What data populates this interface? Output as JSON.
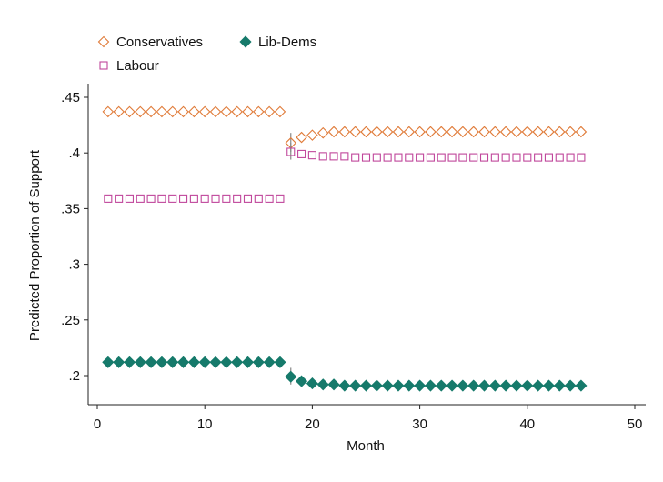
{
  "chart_data": {
    "type": "scatter",
    "title": "",
    "xlabel": "Month",
    "ylabel": "Predicted Proportion of Support",
    "xlim": [
      0,
      50
    ],
    "ylim": [
      0.18,
      0.455
    ],
    "xticks": [
      0,
      10,
      20,
      30,
      40,
      50
    ],
    "xtick_labels": [
      "0",
      "10",
      "20",
      "30",
      "40",
      "50"
    ],
    "yticks": [
      0.2,
      0.25,
      0.3,
      0.35,
      0.4,
      0.45
    ],
    "ytick_labels": [
      ".2",
      ".25",
      ".3",
      ".35",
      ".4",
      ".45"
    ],
    "grid": false,
    "legend_position": "top-left",
    "x": [
      1,
      2,
      3,
      4,
      5,
      6,
      7,
      8,
      9,
      10,
      11,
      12,
      13,
      14,
      15,
      16,
      17,
      18,
      19,
      20,
      21,
      22,
      23,
      24,
      25,
      26,
      27,
      28,
      29,
      30,
      31,
      32,
      33,
      34,
      35,
      36,
      37,
      38,
      39,
      40,
      41,
      42,
      43,
      44,
      45
    ],
    "series": [
      {
        "name": "Conservatives",
        "marker": "hollow-diamond",
        "color": "#e07b39",
        "values": [
          0.437,
          0.437,
          0.437,
          0.437,
          0.437,
          0.437,
          0.437,
          0.437,
          0.437,
          0.437,
          0.437,
          0.437,
          0.437,
          0.437,
          0.437,
          0.437,
          0.437,
          0.409,
          0.414,
          0.416,
          0.418,
          0.419,
          0.419,
          0.419,
          0.419,
          0.419,
          0.419,
          0.419,
          0.419,
          0.419,
          0.419,
          0.419,
          0.419,
          0.419,
          0.419,
          0.419,
          0.419,
          0.419,
          0.419,
          0.419,
          0.419,
          0.419,
          0.419,
          0.419,
          0.419
        ],
        "error_x": [
          18
        ],
        "error_low": [
          0.401
        ],
        "error_high": [
          0.418
        ]
      },
      {
        "name": "Labour",
        "marker": "hollow-square",
        "color": "#c0479b",
        "values": [
          0.359,
          0.359,
          0.359,
          0.359,
          0.359,
          0.359,
          0.359,
          0.359,
          0.359,
          0.359,
          0.359,
          0.359,
          0.359,
          0.359,
          0.359,
          0.359,
          0.359,
          0.401,
          0.399,
          0.398,
          0.397,
          0.397,
          0.397,
          0.396,
          0.396,
          0.396,
          0.396,
          0.396,
          0.396,
          0.396,
          0.396,
          0.396,
          0.396,
          0.396,
          0.396,
          0.396,
          0.396,
          0.396,
          0.396,
          0.396,
          0.396,
          0.396,
          0.396,
          0.396,
          0.396
        ],
        "error_x": [
          18
        ],
        "error_low": [
          0.394
        ],
        "error_high": [
          0.409
        ]
      },
      {
        "name": "Lib-Dems",
        "marker": "filled-diamond",
        "color": "#167a6b",
        "values": [
          0.212,
          0.212,
          0.212,
          0.212,
          0.212,
          0.212,
          0.212,
          0.212,
          0.212,
          0.212,
          0.212,
          0.212,
          0.212,
          0.212,
          0.212,
          0.212,
          0.212,
          0.199,
          0.195,
          0.193,
          0.192,
          0.192,
          0.191,
          0.191,
          0.191,
          0.191,
          0.191,
          0.191,
          0.191,
          0.191,
          0.191,
          0.191,
          0.191,
          0.191,
          0.191,
          0.191,
          0.191,
          0.191,
          0.191,
          0.191,
          0.191,
          0.191,
          0.191,
          0.191,
          0.191
        ],
        "error_x": [
          18
        ],
        "error_low": [
          0.192
        ],
        "error_high": [
          0.207
        ]
      }
    ],
    "legend": [
      {
        "label": "Conservatives",
        "series": 0
      },
      {
        "label": "Lib-Dems",
        "series": 2
      },
      {
        "label": "Labour",
        "series": 1
      }
    ]
  }
}
